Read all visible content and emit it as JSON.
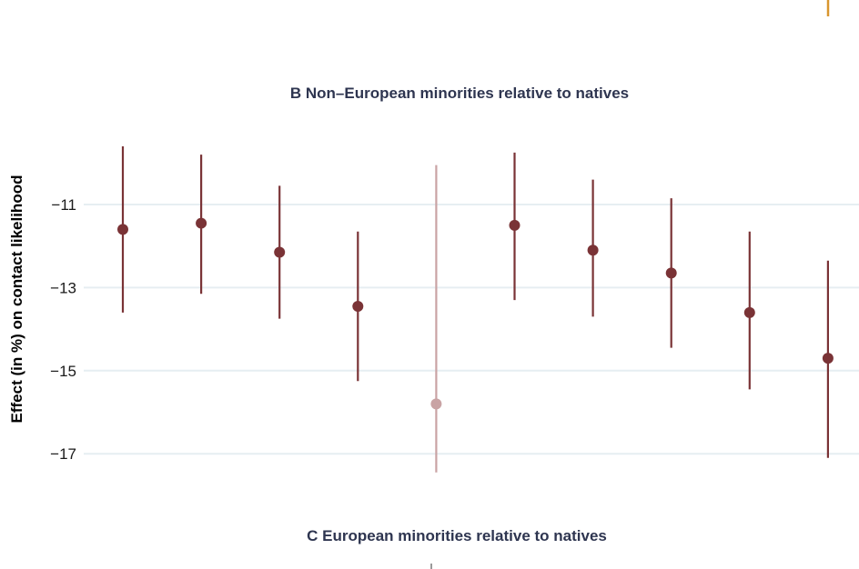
{
  "panel_b_title": "B Non–European minorities relative to natives",
  "panel_c_title": "C European minorities relative to natives",
  "y_axis_label": "Effect (in %) on contact likelihood",
  "colors": {
    "main": "#7a3336",
    "highlight": "#c9a3a4",
    "grid": "#e6eef2",
    "top_fragment": "#d9962e",
    "bottom_fragment": "#9a9a9a",
    "title": "#2e3550"
  },
  "chart_data": {
    "type": "scatter",
    "title": "B Non–European minorities relative to natives",
    "ylabel": "Effect (in %) on contact likelihood",
    "xlabel": "",
    "ylim": [
      -17.5,
      -9.2
    ],
    "y_ticks": [
      -11,
      -13,
      -15,
      -17
    ],
    "y_tick_labels": [
      "−11",
      "−13",
      "−15",
      "−17"
    ],
    "grid": "horizontal",
    "points": [
      {
        "index": 1,
        "estimate": -11.6,
        "lower": -13.6,
        "upper": -9.6,
        "highlighted": false
      },
      {
        "index": 2,
        "estimate": -11.45,
        "lower": -13.15,
        "upper": -9.8,
        "highlighted": false
      },
      {
        "index": 3,
        "estimate": -12.15,
        "lower": -13.75,
        "upper": -10.55,
        "highlighted": false
      },
      {
        "index": 4,
        "estimate": -13.45,
        "lower": -15.25,
        "upper": -11.65,
        "highlighted": false
      },
      {
        "index": 5,
        "estimate": -15.8,
        "lower": -17.45,
        "upper": -10.05,
        "highlighted": true
      },
      {
        "index": 6,
        "estimate": -11.5,
        "lower": -13.3,
        "upper": -9.75,
        "highlighted": false
      },
      {
        "index": 7,
        "estimate": -12.1,
        "lower": -13.7,
        "upper": -10.4,
        "highlighted": false
      },
      {
        "index": 8,
        "estimate": -12.65,
        "lower": -14.45,
        "upper": -10.85,
        "highlighted": false
      },
      {
        "index": 9,
        "estimate": -13.6,
        "lower": -15.45,
        "upper": -11.65,
        "highlighted": false
      },
      {
        "index": 10,
        "estimate": -14.7,
        "lower": -17.1,
        "upper": -12.35,
        "highlighted": false
      }
    ]
  }
}
